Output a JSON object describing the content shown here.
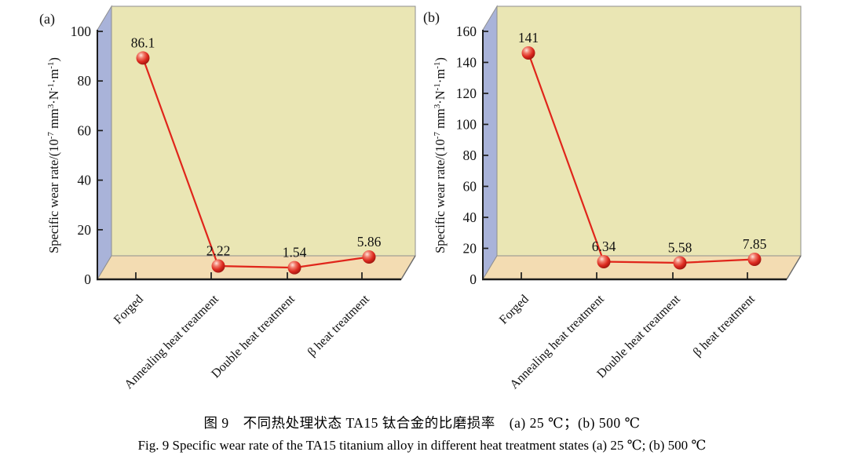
{
  "figure": {
    "caption_zh": "图 9　不同热处理状态 TA15 钛合金的比磨损率　(a) 25 ℃；(b) 500 ℃",
    "caption_en": "Fig. 9   Specific wear rate of the TA15 titanium alloy in different heat treatment states   (a) 25 ℃; (b) 500 ℃"
  },
  "colors": {
    "wall_left": "#a9b3d9",
    "wall_back": "#eae6b4",
    "floor": "#f3dcb2",
    "wall_edge": "#8f8f8f",
    "axis": "#1c1c1c",
    "line": "#e0251b",
    "marker_deep": "#8c0f0a",
    "marker_mid": "#dd2a20",
    "marker_light": "#f07a6a",
    "marker_highlight": "#ffe3da",
    "text": "#111111"
  },
  "chart_data": [
    {
      "type": "line",
      "panel_tag": "(a)",
      "condition": "25 ℃",
      "categories": [
        "Forged",
        "Annealing heat treatment",
        "Double heat treatment",
        "β heat treatment"
      ],
      "values": [
        86.1,
        2.22,
        1.54,
        5.86
      ],
      "value_labels": [
        "86.1",
        "2.22",
        "1.54",
        "5.86"
      ],
      "ylim": [
        0,
        100
      ],
      "yticks": [
        0,
        20,
        40,
        60,
        80,
        100
      ],
      "ylabel": "Specific wear rate/(10⁻⁷ mm³·N⁻¹·m⁻¹)",
      "ylabel_parts": [
        {
          "t": "Specific wear rate/(10"
        },
        {
          "t": "-7",
          "sup": true
        },
        {
          "t": " mm"
        },
        {
          "t": "3",
          "sup": true
        },
        {
          "t": "·N"
        },
        {
          "t": "-1",
          "sup": true
        },
        {
          "t": "·m"
        },
        {
          "t": "-1",
          "sup": true
        },
        {
          "t": ")"
        }
      ],
      "legend": null,
      "grid": false
    },
    {
      "type": "line",
      "panel_tag": "(b)",
      "condition": "500 ℃",
      "categories": [
        "Forged",
        "Annealing heat treatment",
        "Double heat treatment",
        "β heat treatment"
      ],
      "values": [
        141,
        6.34,
        5.58,
        7.85
      ],
      "value_labels": [
        "141",
        "6.34",
        "5.58",
        "7.85"
      ],
      "ylim": [
        0,
        160
      ],
      "yticks": [
        0,
        20,
        40,
        60,
        80,
        100,
        120,
        140,
        160
      ],
      "ylabel": "Specific wear rate/(10⁻⁷ mm³·N⁻¹·m⁻¹)",
      "ylabel_parts": [
        {
          "t": "Specific wear rate/(10"
        },
        {
          "t": "-7",
          "sup": true
        },
        {
          "t": " mm"
        },
        {
          "t": "3",
          "sup": true
        },
        {
          "t": "·N"
        },
        {
          "t": "-1",
          "sup": true
        },
        {
          "t": "·m"
        },
        {
          "t": "-1",
          "sup": true
        },
        {
          "t": ")"
        }
      ],
      "legend": null,
      "grid": false
    }
  ]
}
